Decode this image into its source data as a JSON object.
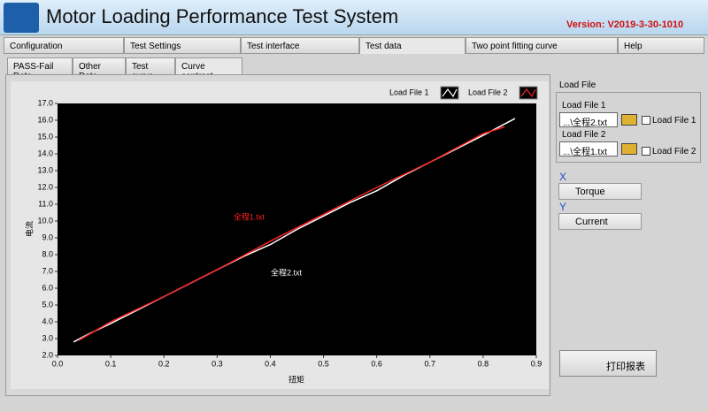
{
  "header": {
    "title": "Motor Loading Performance Test System",
    "version": "Version: V2019-3-30-1010"
  },
  "tabs": [
    "Configuration",
    "Test Settings",
    "Test interface",
    "Test data",
    "Two point fitting curve",
    "Help"
  ],
  "subtabs": [
    "PASS-Fail Data",
    "Other Data",
    "Test curve",
    "Curve contrast"
  ],
  "load_file": {
    "title": "Load File",
    "file1_label": "Load File 1",
    "file1_path": "...\\全程2.txt",
    "file1_check": "Load File 1",
    "file2_label": "Load File 2",
    "file2_path": "...\\全程1.txt",
    "file2_check": "Load File 2"
  },
  "x_select": {
    "label": "X",
    "value": "Torque"
  },
  "y_select": {
    "label": "Y",
    "value": "Current"
  },
  "print_button": "打印报表",
  "chart_data": {
    "type": "line",
    "xlabel": "扭矩",
    "ylabel": "电流",
    "annotations": [
      {
        "text": "全程1.txt",
        "x": 0.36,
        "y": 10.2,
        "color": "#ff2020"
      },
      {
        "text": "全程2.txt",
        "x": 0.43,
        "y": 6.9,
        "color": "#ffffff"
      }
    ],
    "series": [
      {
        "name": "Load File 1",
        "color": "#ffffff",
        "x": [
          0.03,
          0.06,
          0.1,
          0.15,
          0.2,
          0.25,
          0.3,
          0.35,
          0.4,
          0.45,
          0.5,
          0.55,
          0.6,
          0.65,
          0.7,
          0.75,
          0.8,
          0.86
        ],
        "values": [
          2.8,
          3.3,
          3.9,
          4.7,
          5.5,
          6.3,
          7.1,
          7.9,
          8.6,
          9.5,
          10.3,
          11.1,
          11.8,
          12.7,
          13.5,
          14.3,
          15.1,
          16.1
        ]
      },
      {
        "name": "Load File 2",
        "color": "#ff2020",
        "x": [
          0.04,
          0.1,
          0.2,
          0.3,
          0.4,
          0.5,
          0.6,
          0.7,
          0.8,
          0.84
        ],
        "values": [
          2.9,
          4.0,
          5.5,
          7.1,
          8.8,
          10.4,
          12.0,
          13.5,
          15.2,
          15.6
        ]
      }
    ],
    "xlim": [
      0,
      0.9
    ],
    "xticks": [
      {
        "value": 0,
        "label": "0.0"
      },
      0.1,
      0.2,
      0.3,
      0.4,
      0.5,
      0.6,
      0.7,
      0.8,
      0.9
    ],
    "ylim": [
      2,
      17
    ],
    "yticks": [
      {
        "value": 2,
        "label": "2.0"
      },
      {
        "value": 3,
        "label": "3.0"
      },
      {
        "value": 4,
        "label": "4.0"
      },
      {
        "value": 5,
        "label": "5.0"
      },
      {
        "value": 6,
        "label": "6.0"
      },
      {
        "value": 7,
        "label": "7.0"
      },
      {
        "value": 8,
        "label": "8.0"
      },
      {
        "value": 9,
        "label": "9.0"
      },
      {
        "value": 10,
        "label": "10.0"
      },
      {
        "value": 11,
        "label": "11.0"
      },
      {
        "value": 12,
        "label": "12.0"
      },
      {
        "value": 13,
        "label": "13.0"
      },
      {
        "value": 14,
        "label": "14.0"
      },
      {
        "value": 15,
        "label": "15.0"
      },
      {
        "value": 16,
        "label": "16.0"
      },
      {
        "value": 17,
        "label": "17.0"
      }
    ],
    "grid": false
  }
}
